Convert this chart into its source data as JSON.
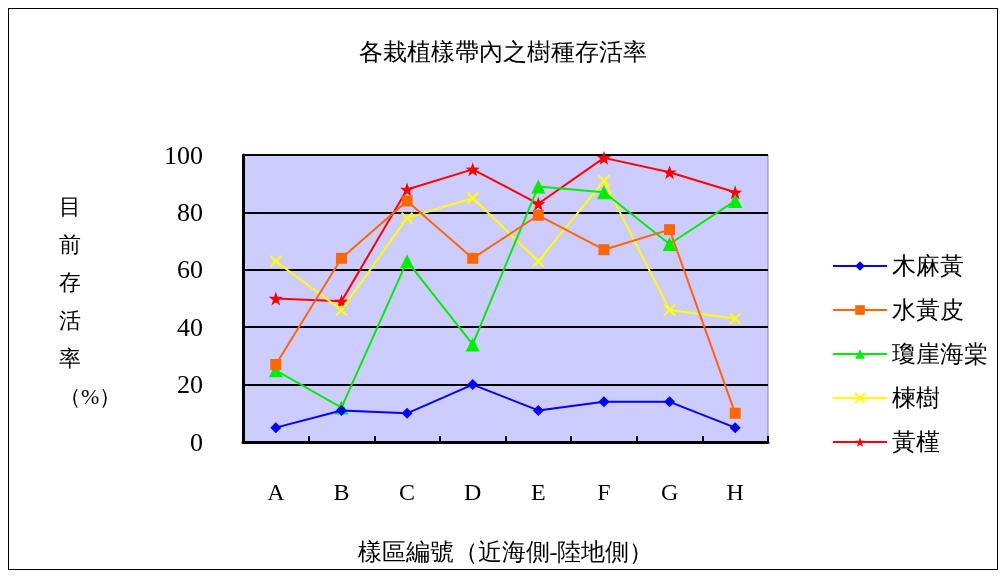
{
  "chart_data": {
    "type": "line",
    "title": "各栽植樣帶內之樹種存活率",
    "xlabel": "樣區編號（近海側-陸地側）",
    "ylabel": "目前存活率（%）",
    "categories": [
      "A",
      "B",
      "C",
      "D",
      "E",
      "F",
      "G",
      "H"
    ],
    "series": [
      {
        "name": "木麻黃",
        "color": "#0000ff",
        "marker": "diamond",
        "values": [
          5,
          11,
          10,
          20,
          11,
          14,
          14,
          5
        ]
      },
      {
        "name": "水黃皮",
        "color": "#ff6600",
        "marker": "square",
        "values": [
          27,
          64,
          84,
          64,
          79,
          67,
          74,
          10
        ]
      },
      {
        "name": "瓊崖海棠",
        "color": "#00ee00",
        "marker": "triangle",
        "values": [
          25,
          12,
          63,
          34,
          89,
          87,
          69,
          84
        ]
      },
      {
        "name": "楝樹",
        "color": "#ffff00",
        "marker": "cross",
        "values": [
          63,
          46,
          78,
          85,
          63,
          91,
          46,
          43
        ]
      },
      {
        "name": "黃槿",
        "color": "#ff0000",
        "marker": "star",
        "values": [
          50,
          49,
          88,
          95,
          83,
          99,
          94,
          87
        ]
      }
    ],
    "ylim": [
      0,
      100
    ],
    "yticks": [
      0,
      20,
      40,
      60,
      80,
      100
    ],
    "grid": "y",
    "legend": "right"
  }
}
